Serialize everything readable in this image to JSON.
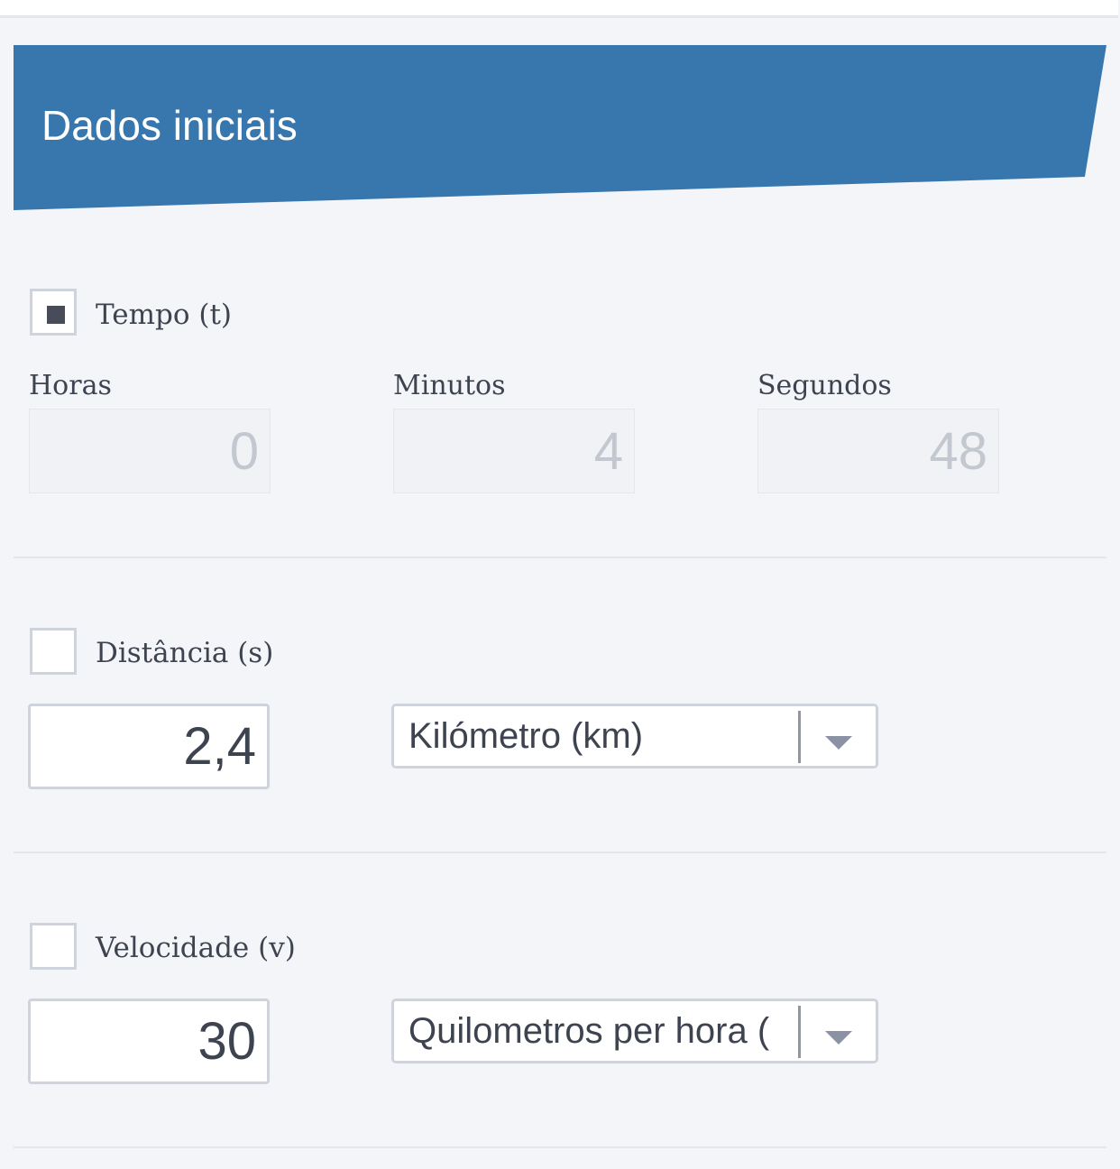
{
  "header": {
    "title": "Dados iniciais",
    "color": "#3777ad"
  },
  "tempo": {
    "label": "Tempo (t)",
    "checked": true,
    "fields": [
      {
        "label": "Horas",
        "value": "0"
      },
      {
        "label": "Minutos",
        "value": "4"
      },
      {
        "label": "Segundos",
        "value": "48"
      }
    ]
  },
  "distancia": {
    "label": "Distância (s)",
    "checked": false,
    "value": "2,4",
    "unit": "Kilómetro (km)"
  },
  "velocidade": {
    "label": "Velocidade (v)",
    "checked": false,
    "value": "30",
    "unit": "Quilometros per hora ("
  }
}
